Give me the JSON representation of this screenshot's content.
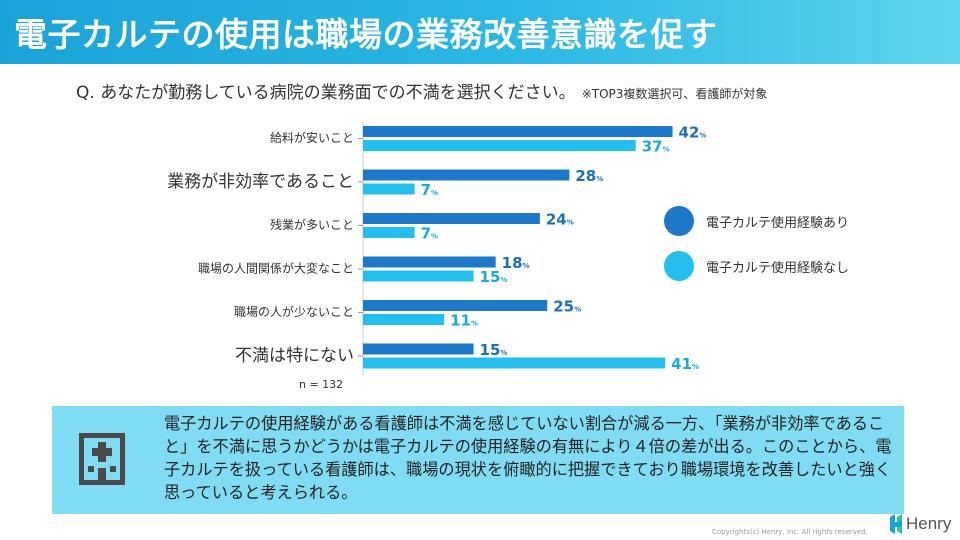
{
  "header": {
    "title": "電子カルテの使用は職場の業務改善意識を促す"
  },
  "question": {
    "text": "Q. あなたが勤務している病院の業務面での不満を選択ください。",
    "note": "※TOP3複数選択可、看護師が対象"
  },
  "chart_data": {
    "type": "bar",
    "orientation": "horizontal",
    "categories": [
      "給料が安いこと",
      "業務が非効率であること",
      "残業が多いこと",
      "職場の人間関係が大変なこと",
      "職場の人が少ないこと",
      "不満は特にない"
    ],
    "emphasized_categories": [
      "業務が非効率であること",
      "不満は特にない"
    ],
    "series": [
      {
        "name": "電子カルテ使用経験あり",
        "values": [
          42,
          28,
          24,
          18,
          25,
          15
        ],
        "color": "#1e78c8"
      },
      {
        "name": "電子カルテ使用経験なし",
        "values": [
          37,
          7,
          7,
          15,
          11,
          41
        ],
        "color": "#24bfee"
      }
    ],
    "value_unit": "%",
    "xlim": [
      0,
      50
    ],
    "grid": false,
    "legend": "right"
  },
  "sample_size": "n = 132",
  "summary": {
    "text": "電子カルテの使用経験がある看護師は不満を感じていない割合が減る一方、「業務が非効率であること」を不満に思うかどうかは電子カルテの使用経験の有無により４倍の差が出る。このことから、電子カルテを扱っている看護師は、職場の現状を俯瞰的に把握できており職場環境を改善したいと強く思っていると考えられる。",
    "icon": "hospital-building-icon"
  },
  "footer": {
    "copyright": "Copyrights(c) Henry, Inc. All rights reserved.",
    "brand": "Henry"
  }
}
